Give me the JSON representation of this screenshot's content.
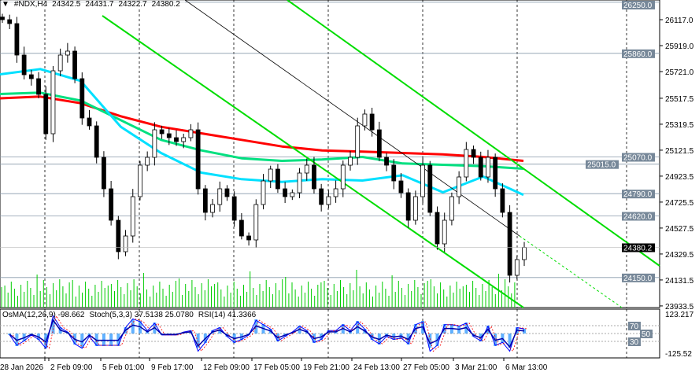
{
  "header": {
    "symbol": "#NDX,H4",
    "open": "24342.5",
    "high": "24431.7",
    "low": "24322.7",
    "close": "24380.2"
  },
  "indicators": {
    "osma": "OsMA(12,26,9) -98.662",
    "stoch": "Stoch(5,3,3) 37.5138 25.0780",
    "rsi": "RSI(14) 41.3366"
  },
  "colors": {
    "bull": "#00ff00",
    "bear": "#00ff00",
    "ma_long": "#ff0000",
    "ma_mid": "#00e080",
    "ma_short": "#00e0ff",
    "channel": "#00dd00",
    "level": "#778899"
  },
  "chart_data": {
    "type": "candlestick",
    "timeframe": "H4",
    "ylim": [
      23850,
      26260
    ],
    "y_ticks": [
      "26117.0",
      "25919.0",
      "25721.0",
      "25517.5",
      "25319.5",
      "25121.5",
      "24923.5",
      "24725.5",
      "24527.5",
      "24329.5",
      "24131.5",
      "23933.5"
    ],
    "x_ticks": [
      "28 Jan 2026",
      "2 Feb 09:00",
      "5 Feb 01:00",
      "9 Feb 17:00",
      "12 Feb 09:00",
      "17 Feb 05:00",
      "19 Feb 21:00",
      "24 Feb 13:00",
      "27 Feb 05:00",
      "3 Mar 21:00",
      "6 Mar 13:00"
    ],
    "levels": [
      "26250.0",
      "25860.0",
      "25070.0",
      "25015.0",
      "24790.0",
      "24620.0",
      "24150.0"
    ],
    "current_price": "24380.2",
    "closes": [
      26117,
      26087,
      25847,
      25697,
      25667,
      25547,
      25247,
      25727,
      25847,
      25877,
      25667,
      25367,
      25307,
      25067,
      24827,
      24587,
      24347,
      24467,
      24767,
      25007,
      25067,
      25277,
      25247,
      25217,
      25187,
      25217,
      25277,
      24827,
      24647,
      24707,
      24827,
      24767,
      24587,
      24467,
      24437,
      24707,
      24887,
      24977,
      24827,
      24767,
      24797,
      24947,
      25007,
      24827,
      24707,
      24767,
      24827,
      25007,
      25067,
      25307,
      25397,
      25277,
      25067,
      25007,
      24887,
      24797,
      24587,
      24767,
      25007,
      24647,
      24407,
      24587,
      24767,
      24917,
      25127,
      25067,
      24917,
      25067,
      24827,
      24647,
      24167,
      24287,
      24380.2
    ],
    "ma_long": [
      25517,
      25530,
      25480,
      25380,
      25300,
      25250,
      25200,
      25150,
      25120,
      25110,
      25100,
      25090,
      25070,
      25040
    ],
    "ma_mid": [
      25550,
      25560,
      25500,
      25350,
      25200,
      25120,
      25060,
      25040,
      25050,
      25070,
      25020,
      25010,
      25000,
      24980
    ],
    "ma_short": [
      25700,
      25740,
      25650,
      25300,
      25100,
      24950,
      24900,
      24880,
      24900,
      24890,
      24930,
      24800,
      24920,
      24780
    ],
    "sub_axis": {
      "max": "123.217",
      "min": "-125.52",
      "levels": [
        "70",
        "50",
        "30"
      ]
    }
  }
}
